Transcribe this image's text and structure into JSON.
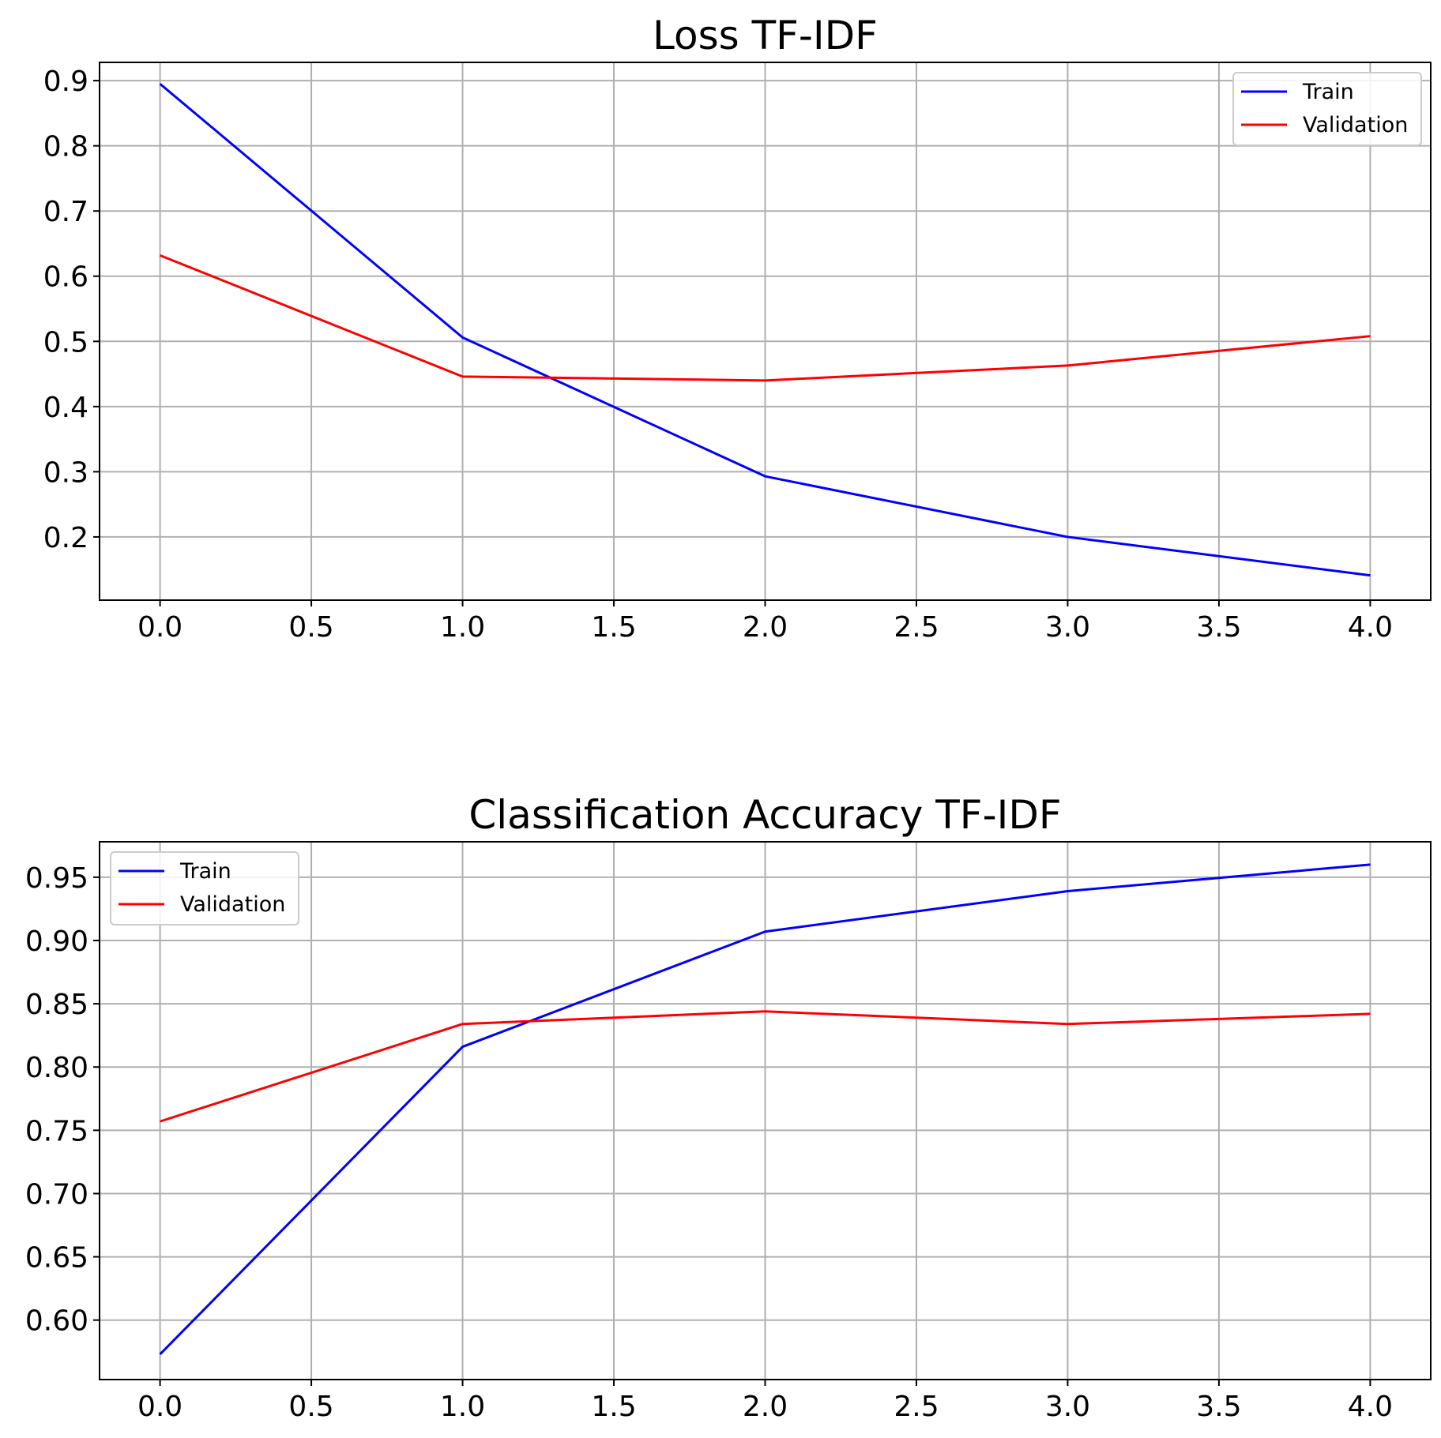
{
  "chart_data": [
    {
      "type": "line",
      "title": "Loss TF-IDF",
      "xlabel": "",
      "ylabel": "",
      "x": [
        0,
        1,
        2,
        3,
        4
      ],
      "xticks": [
        "0.0",
        "0.5",
        "1.0",
        "1.5",
        "2.0",
        "2.5",
        "3.0",
        "3.5",
        "4.0"
      ],
      "xtick_values": [
        0,
        0.5,
        1,
        1.5,
        2,
        2.5,
        3,
        3.5,
        4
      ],
      "yticks": [
        "0.2",
        "0.3",
        "0.4",
        "0.5",
        "0.6",
        "0.7",
        "0.8",
        "0.9"
      ],
      "ytick_values": [
        0.2,
        0.3,
        0.4,
        0.5,
        0.6,
        0.7,
        0.8,
        0.9
      ],
      "xlim": [
        -0.2,
        4.2
      ],
      "ylim": [
        0.103,
        0.928
      ],
      "grid": true,
      "legend_position": "top-right",
      "series": [
        {
          "name": "Train",
          "color": "#0000ff",
          "values": [
            0.895,
            0.506,
            0.293,
            0.2,
            0.141
          ]
        },
        {
          "name": "Validation",
          "color": "#ff0000",
          "values": [
            0.632,
            0.446,
            0.44,
            0.463,
            0.508
          ]
        }
      ]
    },
    {
      "type": "line",
      "title": "Classification Accuracy TF-IDF",
      "xlabel": "",
      "ylabel": "",
      "x": [
        0,
        1,
        2,
        3,
        4
      ],
      "xticks": [
        "0.0",
        "0.5",
        "1.0",
        "1.5",
        "2.0",
        "2.5",
        "3.0",
        "3.5",
        "4.0"
      ],
      "xtick_values": [
        0,
        0.5,
        1,
        1.5,
        2,
        2.5,
        3,
        3.5,
        4
      ],
      "yticks": [
        "0.60",
        "0.65",
        "0.70",
        "0.75",
        "0.80",
        "0.85",
        "0.90",
        "0.95"
      ],
      "ytick_values": [
        0.6,
        0.65,
        0.7,
        0.75,
        0.8,
        0.85,
        0.9,
        0.95
      ],
      "xlim": [
        -0.2,
        4.2
      ],
      "ylim": [
        0.553,
        0.978
      ],
      "grid": true,
      "legend_position": "top-left",
      "series": [
        {
          "name": "Train",
          "color": "#0000ff",
          "values": [
            0.573,
            0.816,
            0.907,
            0.939,
            0.96
          ]
        },
        {
          "name": "Validation",
          "color": "#ff0000",
          "values": [
            0.757,
            0.834,
            0.844,
            0.834,
            0.842
          ]
        }
      ]
    }
  ]
}
